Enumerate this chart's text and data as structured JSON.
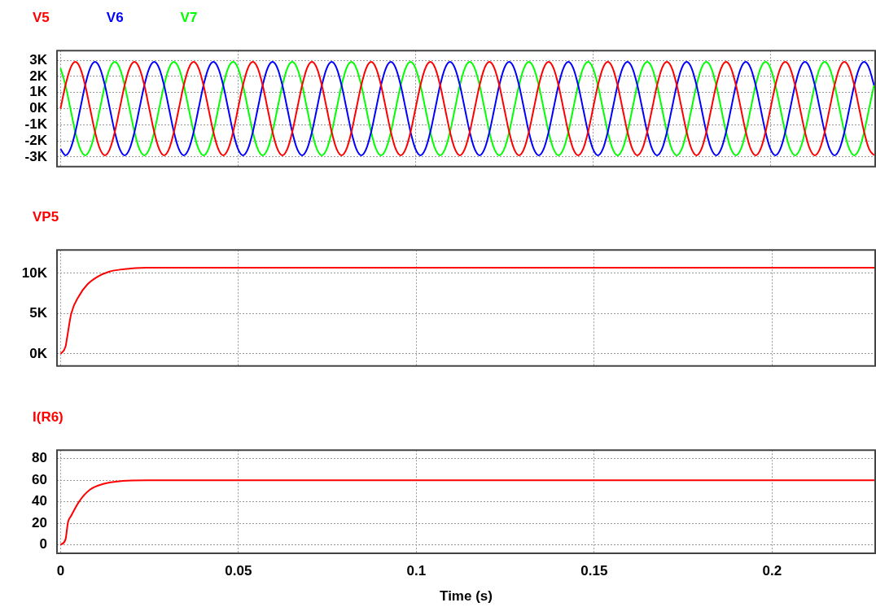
{
  "chart_data": [
    {
      "type": "line",
      "legend": "top left",
      "grid": true,
      "tick_labels": "y",
      "xlim": [
        -0.001,
        0.2295
      ],
      "xticks": [
        0,
        0.05,
        0.1,
        0.15,
        0.2
      ],
      "ylim": [
        -3600,
        3600
      ],
      "yticks": [
        {
          "value": -3000,
          "label": "-3K"
        },
        {
          "value": -2000,
          "label": "-2K"
        },
        {
          "value": -1000,
          "label": "-1K"
        },
        {
          "value": 0,
          "label": "0K"
        },
        {
          "value": 1000,
          "label": "1K"
        },
        {
          "value": 2000,
          "label": "2K"
        },
        {
          "value": 3000,
          "label": "3K"
        }
      ],
      "x": [
        0,
        0.00139,
        0.00278,
        0.00417,
        0.00556,
        0.00694,
        0.00833,
        0.00972,
        0.01111,
        0.0125,
        0.01389,
        0.01528,
        0.01667,
        0.01806,
        0.01944,
        0.02083,
        0.02222,
        0.02361,
        0.025,
        0.02639,
        0.02778,
        0.02917,
        0.03056,
        0.03194,
        0.03333,
        0.03472,
        0.03611,
        0.0375,
        0.03889,
        0.04028,
        0.04167,
        0.04306,
        0.04444,
        0.04583,
        0.04722,
        0.04861,
        0.05,
        0.05139,
        0.05278,
        0.05417,
        0.05556,
        0.05694,
        0.05833,
        0.05972,
        0.06111,
        0.0625,
        0.06389,
        0.06528,
        0.06667,
        0.06806,
        0.06944,
        0.07083,
        0.07222,
        0.07361,
        0.075,
        0.07639,
        0.07778,
        0.07917,
        0.08056,
        0.08194,
        0.08333,
        0.08472,
        0.08611,
        0.0875,
        0.08889,
        0.09028,
        0.09167,
        0.09306,
        0.09444,
        0.09583,
        0.09722,
        0.09861,
        0.1,
        0.10139,
        0.10278,
        0.10417,
        0.10556,
        0.10694,
        0.10833,
        0.10972,
        0.11111,
        0.1125,
        0.11389,
        0.11528,
        0.11667,
        0.11806,
        0.11944,
        0.12083,
        0.12222,
        0.12361,
        0.125,
        0.12639,
        0.12778,
        0.12917,
        0.13056,
        0.13194,
        0.13333,
        0.13472,
        0.13611,
        0.1375,
        0.13889,
        0.14028,
        0.14167,
        0.14306,
        0.14444,
        0.14583,
        0.14722,
        0.14861,
        0.15,
        0.15139,
        0.15278,
        0.15417,
        0.15556,
        0.15694,
        0.15833,
        0.15972,
        0.16111,
        0.1625,
        0.16389,
        0.16528,
        0.16667,
        0.16806,
        0.16944,
        0.17083,
        0.17222,
        0.17361,
        0.175,
        0.17639,
        0.17778,
        0.17917,
        0.18056,
        0.18194,
        0.18333,
        0.18472,
        0.18611,
        0.1875,
        0.18889,
        0.19028,
        0.19167,
        0.19306,
        0.19444,
        0.19583,
        0.19722,
        0.19861,
        0.2,
        0.20139,
        0.20278,
        0.20417,
        0.20556,
        0.20694,
        0.20833,
        0.20972,
        0.21111,
        0.2125,
        0.21389,
        0.21528,
        0.21667,
        0.21806,
        0.21944,
        0.22083,
        0.22222,
        0.22361,
        0.225,
        0.22639,
        0.22778,
        0.22917
      ],
      "series": [
        {
          "name": "V5",
          "color": "#ff0000",
          "values": [
            0,
            1450,
            2510,
            2900,
            2510,
            1450,
            0,
            -1450,
            -2510,
            -2900,
            -2510,
            -1450,
            0,
            1450,
            2510,
            2900,
            2510,
            1450,
            0,
            -1450,
            -2510,
            -2900,
            -2510,
            -1450,
            0,
            1450,
            2510,
            2900,
            2510,
            1450,
            0,
            -1450,
            -2510,
            -2900,
            -2510,
            -1450,
            0,
            1450,
            2510,
            2900,
            2510,
            1450,
            0,
            -1450,
            -2510,
            -2900,
            -2510,
            -1450,
            0,
            1450,
            2510,
            2900,
            2510,
            1450,
            0,
            -1450,
            -2510,
            -2900,
            -2510,
            -1450,
            0,
            1450,
            2510,
            2900,
            2510,
            1450,
            0,
            -1450,
            -2510,
            -2900,
            -2510,
            -1450,
            0,
            1450,
            2510,
            2900,
            2510,
            1450,
            0,
            -1450,
            -2510,
            -2900,
            -2510,
            -1450,
            0,
            1450,
            2510,
            2900,
            2510,
            1450,
            0,
            -1450,
            -2510,
            -2900,
            -2510,
            -1450,
            0,
            1450,
            2510,
            2900,
            2510,
            1450,
            0,
            -1450,
            -2510,
            -2900,
            -2510,
            -1450,
            0,
            1450,
            2510,
            2900,
            2510,
            1450,
            0,
            -1450,
            -2510,
            -2900,
            -2510,
            -1450,
            0,
            1450,
            2510,
            2900,
            2510,
            1450,
            0,
            -1450,
            -2510,
            -2900,
            -2510,
            -1450,
            0,
            1450,
            2510,
            2900,
            2510,
            1450,
            0,
            -1450,
            -2510,
            -2900,
            -2510,
            -1450,
            0,
            1450,
            2510,
            2900,
            2510,
            1450,
            0,
            -1450,
            -2510,
            -2900,
            -2510,
            -1450,
            0,
            1450,
            2510,
            2900,
            2510,
            1450,
            0,
            -1450,
            -2510,
            -2900
          ]
        },
        {
          "name": "V6",
          "color": "#0000ff",
          "values": [
            -2510,
            -2900,
            -2510,
            -1450,
            0,
            1450,
            2510,
            2900,
            2510,
            1450,
            0,
            -1450,
            -2510,
            -2900,
            -2510,
            -1450,
            0,
            1450,
            2510,
            2900,
            2510,
            1450,
            0,
            -1450,
            -2510,
            -2900,
            -2510,
            -1450,
            0,
            1450,
            2510,
            2900,
            2510,
            1450,
            0,
            -1450,
            -2510,
            -2900,
            -2510,
            -1450,
            0,
            1450,
            2510,
            2900,
            2510,
            1450,
            0,
            -1450,
            -2510,
            -2900,
            -2510,
            -1450,
            0,
            1450,
            2510,
            2900,
            2510,
            1450,
            0,
            -1450,
            -2510,
            -2900,
            -2510,
            -1450,
            0,
            1450,
            2510,
            2900,
            2510,
            1450,
            0,
            -1450,
            -2510,
            -2900,
            -2510,
            -1450,
            0,
            1450,
            2510,
            2900,
            2510,
            1450,
            0,
            -1450,
            -2510,
            -2900,
            -2510,
            -1450,
            0,
            1450,
            2510,
            2900,
            2510,
            1450,
            0,
            -1450,
            -2510,
            -2900,
            -2510,
            -1450,
            0,
            1450,
            2510,
            2900,
            2510,
            1450,
            0,
            -1450,
            -2510,
            -2900,
            -2510,
            -1450,
            0,
            1450,
            2510,
            2900,
            2510,
            1450,
            0,
            -1450,
            -2510,
            -2900,
            -2510,
            -1450,
            0,
            1450,
            2510,
            2900,
            2510,
            1450,
            0,
            -1450,
            -2510,
            -2900,
            -2510,
            -1450,
            0,
            1450,
            2510,
            2900,
            2510,
            1450,
            0,
            -1450,
            -2510,
            -2900,
            -2510,
            -1450,
            0,
            1450,
            2510,
            2900,
            2510,
            1450,
            0,
            -1450,
            -2510,
            -2900,
            -2510,
            -1450,
            0,
            1450,
            2510,
            2900,
            2510,
            1450
          ]
        },
        {
          "name": "V7",
          "color": "#00ff00",
          "values": [
            2510,
            1450,
            0,
            -1450,
            -2510,
            -2900,
            -2510,
            -1450,
            0,
            1450,
            2510,
            2900,
            2510,
            1450,
            0,
            -1450,
            -2510,
            -2900,
            -2510,
            -1450,
            0,
            1450,
            2510,
            2900,
            2510,
            1450,
            0,
            -1450,
            -2510,
            -2900,
            -2510,
            -1450,
            0,
            1450,
            2510,
            2900,
            2510,
            1450,
            0,
            -1450,
            -2510,
            -2900,
            -2510,
            -1450,
            0,
            1450,
            2510,
            2900,
            2510,
            1450,
            0,
            -1450,
            -2510,
            -2900,
            -2510,
            -1450,
            0,
            1450,
            2510,
            2900,
            2510,
            1450,
            0,
            -1450,
            -2510,
            -2900,
            -2510,
            -1450,
            0,
            1450,
            2510,
            2900,
            2510,
            1450,
            0,
            -1450,
            -2510,
            -2900,
            -2510,
            -1450,
            0,
            1450,
            2510,
            2900,
            2510,
            1450,
            0,
            -1450,
            -2510,
            -2900,
            -2510,
            -1450,
            0,
            1450,
            2510,
            2900,
            2510,
            1450,
            0,
            -1450,
            -2510,
            -2900,
            -2510,
            -1450,
            0,
            1450,
            2510,
            2900,
            2510,
            1450,
            0,
            -1450,
            -2510,
            -2900,
            -2510,
            -1450,
            0,
            1450,
            2510,
            2900,
            2510,
            1450,
            0,
            -1450,
            -2510,
            -2900,
            -2510,
            -1450,
            0,
            1450,
            2510,
            2900,
            2510,
            1450,
            0,
            -1450,
            -2510,
            -2900,
            -2510,
            -1450,
            0,
            1450,
            2510,
            2900,
            2510,
            1450,
            0,
            -1450,
            -2510,
            -2900,
            -2510,
            -1450,
            0,
            1450,
            2510,
            2900,
            2510,
            1450,
            0,
            -1450,
            -2510,
            -2900,
            -2510,
            -1450,
            0,
            1450
          ]
        }
      ]
    },
    {
      "type": "line",
      "legend": "top left",
      "grid": true,
      "tick_labels": "y",
      "xlim": [
        -0.001,
        0.229
      ],
      "xticks": [
        0,
        0.05,
        0.1,
        0.15,
        0.2
      ],
      "ylim": [
        -1500,
        12900
      ],
      "yticks": [
        {
          "value": 0,
          "label": "0K"
        },
        {
          "value": 5000,
          "label": "5K"
        },
        {
          "value": 10000,
          "label": "10K"
        }
      ],
      "x": [
        0,
        0.0014,
        0.0018,
        0.003,
        0.0052,
        0.0075,
        0.0105,
        0.0136,
        0.0174,
        0.0242,
        0.229
      ],
      "series": [
        {
          "name": "VP5",
          "color": "#ff0000",
          "values": [
            0,
            900,
            1900,
            5000,
            7200,
            8600,
            9600,
            10200,
            10500,
            10700,
            10700
          ]
        }
      ]
    },
    {
      "type": "line",
      "legend": "top left",
      "grid": true,
      "xlabel": "Time (s)",
      "xlim": [
        -0.001,
        0.229
      ],
      "xticks": [
        0,
        0.05,
        0.1,
        0.15,
        0.2
      ],
      "ylim": [
        -8,
        88
      ],
      "yticks": [
        0,
        20,
        40,
        60,
        80
      ],
      "x": [
        0,
        0.0014,
        0.0021,
        0.003,
        0.0052,
        0.0082,
        0.012,
        0.0174,
        0.0242,
        0.229
      ],
      "series": [
        {
          "name": "I(R6)",
          "color": "#ff0000",
          "values": [
            0,
            5,
            21,
            27,
            40,
            51,
            56.5,
            59.3,
            60,
            60
          ]
        }
      ]
    }
  ]
}
